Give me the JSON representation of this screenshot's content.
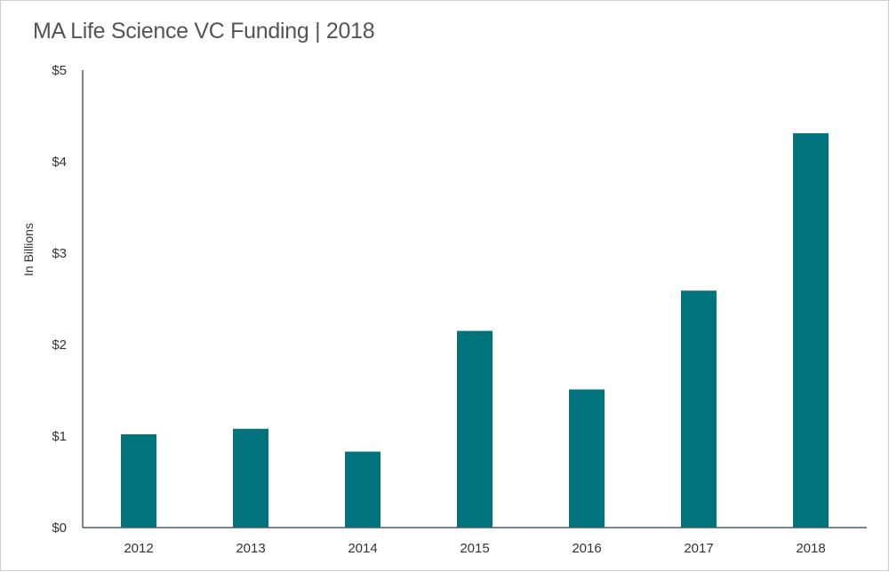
{
  "chart_data": {
    "type": "bar",
    "title": "MA Life Science VC Funding | 2018",
    "xlabel": "",
    "ylabel": "In Billions",
    "categories": [
      "2012",
      "2013",
      "2014",
      "2015",
      "2016",
      "2017",
      "2018"
    ],
    "values": [
      1.02,
      1.08,
      0.83,
      2.15,
      1.51,
      2.59,
      4.31
    ],
    "ylim": [
      0,
      5
    ],
    "yticks": [
      0,
      1,
      2,
      3,
      4,
      5
    ],
    "ytick_labels": [
      "$0",
      "$1",
      "$2",
      "$3",
      "$4",
      "$5"
    ],
    "grid": false,
    "legend": "none",
    "bar_color": "#00737c",
    "axis_color": "#4a5d6e"
  }
}
